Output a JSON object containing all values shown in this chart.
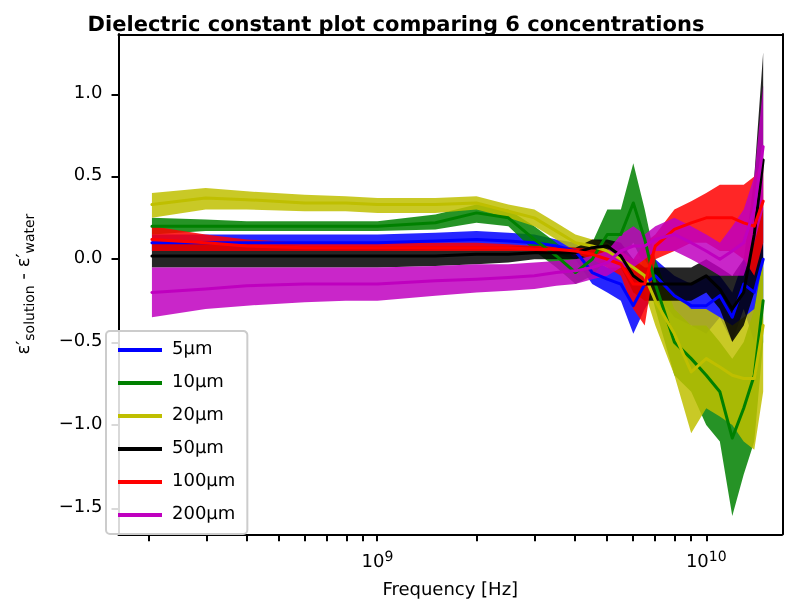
{
  "chart_data": {
    "type": "line",
    "title": "Dielectric constant plot comparing 6 concentrations",
    "xlabel": "Frequency [Hz]",
    "ylabel": "ε′$_{solution}$ - ε′$_{water}$",
    "log": "x",
    "grid": false,
    "legend": "bottom left",
    "marker": "none",
    "line_style": "solid",
    "xlim": [
      163000000.0,
      17000000000.0
    ],
    "xticks": [
      {
        "value": 200000000.0,
        "label": null
      },
      {
        "value": 300000000.0,
        "label": null
      },
      {
        "value": 400000000.0,
        "label": null
      },
      {
        "value": 500000000.0,
        "label": null
      },
      {
        "value": 600000000.0,
        "label": null
      },
      {
        "value": 700000000.0,
        "label": null
      },
      {
        "value": 800000000.0,
        "label": null
      },
      {
        "value": 900000000.0,
        "label": null
      },
      {
        "value": 1000000000.0,
        "label": "10$^{9}$"
      },
      {
        "value": 2000000000.0,
        "label": null
      },
      {
        "value": 3000000000.0,
        "label": null
      },
      {
        "value": 4000000000.0,
        "label": null
      },
      {
        "value": 5000000000.0,
        "label": null
      },
      {
        "value": 6000000000.0,
        "label": null
      },
      {
        "value": 7000000000.0,
        "label": null
      },
      {
        "value": 8000000000.0,
        "label": null
      },
      {
        "value": 9000000000.0,
        "label": null
      },
      {
        "value": 10000000000.0,
        "label": "10$^{10}$"
      }
    ],
    "ylim": [
      -1.66,
      1.36
    ],
    "yticks": [
      {
        "value": -1.5,
        "label": "−1.5"
      },
      {
        "value": -1.0,
        "label": "−1.0"
      },
      {
        "value": -0.5,
        "label": "−0.5"
      },
      {
        "value": 0.0,
        "label": "0.0"
      },
      {
        "value": 0.5,
        "label": "0.5"
      },
      {
        "value": 1.0,
        "label": "1.0"
      }
    ],
    "x": [
      206000000.0,
      300000000.0,
      400000000.0,
      600000000.0,
      800000000.0,
      1000000000.0,
      1500000000.0,
      2000000000.0,
      2500000000.0,
      3000000000.0,
      3500000000.0,
      4000000000.0,
      4500000000.0,
      5000000000.0,
      5500000000.0,
      6000000000.0,
      6500000000.0,
      7000000000.0,
      8000000000.0,
      9000000000.0,
      10000000000.0,
      11000000000.0,
      12000000000.0,
      13000000000.0,
      14000000000.0,
      14900000000.0
    ],
    "series": [
      {
        "name": "5μm",
        "color": "#0000ff",
        "values": [
          0.1,
          0.1,
          0.1,
          0.1,
          0.1,
          0.1,
          0.11,
          0.12,
          0.11,
          0.1,
          0.08,
          0.05,
          -0.08,
          -0.12,
          -0.15,
          -0.28,
          -0.15,
          -0.1,
          -0.22,
          -0.28,
          -0.28,
          -0.22,
          -0.35,
          -0.15,
          -0.2,
          0.0
        ],
        "lower": [
          0.05,
          0.05,
          0.05,
          0.05,
          0.05,
          0.05,
          0.06,
          0.07,
          0.06,
          0.05,
          0.03,
          0.0,
          -0.15,
          -0.2,
          -0.25,
          -0.45,
          -0.3,
          -0.2,
          -0.35,
          -0.4,
          -0.45,
          -0.35,
          -0.5,
          -0.3,
          -0.5,
          -0.3
        ],
        "upper": [
          0.15,
          0.15,
          0.15,
          0.15,
          0.15,
          0.15,
          0.16,
          0.17,
          0.16,
          0.15,
          0.12,
          0.1,
          0.0,
          -0.05,
          -0.05,
          -0.1,
          0.0,
          0.0,
          -0.1,
          -0.15,
          -0.1,
          -0.1,
          -0.2,
          0.0,
          0.1,
          0.3
        ]
      },
      {
        "name": "10μm",
        "color": "#008000",
        "values": [
          0.2,
          0.2,
          0.2,
          0.2,
          0.2,
          0.2,
          0.22,
          0.28,
          0.25,
          0.12,
          0.02,
          -0.08,
          0.0,
          0.15,
          0.15,
          0.34,
          0.12,
          -0.15,
          -0.5,
          -0.6,
          -0.7,
          -0.8,
          -1.08,
          -0.9,
          -0.7,
          -0.25
        ],
        "lower": [
          0.15,
          0.17,
          0.17,
          0.17,
          0.17,
          0.17,
          0.18,
          0.22,
          0.2,
          0.05,
          -0.05,
          -0.15,
          -0.1,
          0.0,
          0.0,
          0.1,
          -0.05,
          -0.3,
          -0.7,
          -0.8,
          -1.0,
          -1.1,
          -1.55,
          -1.3,
          -1.1,
          -0.5
        ],
        "upper": [
          0.25,
          0.24,
          0.23,
          0.23,
          0.23,
          0.23,
          0.27,
          0.33,
          0.3,
          0.2,
          0.1,
          0.0,
          0.1,
          0.3,
          0.3,
          0.58,
          0.3,
          0.0,
          -0.3,
          -0.4,
          -0.4,
          -0.5,
          -0.6,
          -0.5,
          -0.3,
          0.0
        ]
      },
      {
        "name": "20μm",
        "color": "#bfbf00",
        "values": [
          0.33,
          0.37,
          0.36,
          0.34,
          0.34,
          0.33,
          0.33,
          0.34,
          0.29,
          0.25,
          0.17,
          0.1,
          0.08,
          0.05,
          0.0,
          -0.05,
          -0.1,
          -0.25,
          -0.45,
          -0.68,
          -0.6,
          -0.65,
          -0.7,
          -0.72,
          -0.72,
          -0.4
        ],
        "lower": [
          0.25,
          0.3,
          0.3,
          0.29,
          0.29,
          0.28,
          0.28,
          0.3,
          0.25,
          0.2,
          0.12,
          0.05,
          0.03,
          0.0,
          -0.05,
          -0.1,
          -0.2,
          -0.4,
          -0.7,
          -1.05,
          -0.9,
          -0.95,
          -1.0,
          -1.1,
          -1.15,
          -0.8
        ],
        "upper": [
          0.4,
          0.43,
          0.41,
          0.39,
          0.38,
          0.37,
          0.37,
          0.38,
          0.33,
          0.3,
          0.22,
          0.15,
          0.12,
          0.1,
          0.05,
          0.0,
          0.0,
          -0.1,
          -0.2,
          -0.3,
          -0.3,
          -0.35,
          -0.4,
          -0.35,
          -0.3,
          0.0
        ]
      },
      {
        "name": "50μm",
        "color": "#000000",
        "values": [
          0.02,
          0.02,
          0.02,
          0.02,
          0.02,
          0.02,
          0.02,
          0.03,
          0.03,
          0.04,
          0.04,
          0.04,
          0.07,
          0.08,
          0.02,
          -0.1,
          -0.15,
          -0.15,
          -0.15,
          -0.15,
          -0.1,
          -0.18,
          -0.3,
          -0.2,
          0.15,
          0.6
        ],
        "lower": [
          -0.05,
          -0.05,
          -0.05,
          -0.05,
          -0.05,
          -0.05,
          -0.04,
          -0.03,
          -0.02,
          0.0,
          0.0,
          0.0,
          0.02,
          0.05,
          -0.05,
          -0.2,
          -0.25,
          -0.25,
          -0.25,
          -0.25,
          -0.2,
          -0.3,
          -0.5,
          -0.4,
          -0.2,
          0.0
        ],
        "upper": [
          0.1,
          0.1,
          0.09,
          0.08,
          0.08,
          0.08,
          0.08,
          0.08,
          0.08,
          0.08,
          0.07,
          0.07,
          0.12,
          0.12,
          0.1,
          0.0,
          -0.05,
          -0.05,
          -0.05,
          -0.05,
          0.0,
          -0.05,
          -0.1,
          0.0,
          0.5,
          1.25
        ]
      },
      {
        "name": "100μm",
        "color": "#ff0000",
        "values": [
          0.12,
          0.1,
          0.08,
          0.07,
          0.07,
          0.07,
          0.07,
          0.07,
          0.07,
          0.06,
          0.06,
          0.05,
          0.03,
          0.0,
          -0.03,
          -0.15,
          -0.15,
          0.08,
          0.18,
          0.22,
          0.25,
          0.25,
          0.25,
          0.22,
          0.2,
          0.35
        ],
        "lower": [
          0.05,
          0.05,
          0.05,
          0.05,
          0.05,
          0.05,
          0.05,
          0.05,
          0.05,
          0.05,
          0.04,
          0.03,
          0.0,
          -0.05,
          -0.1,
          -0.3,
          -0.4,
          0.0,
          0.05,
          0.1,
          0.1,
          0.05,
          0.05,
          0.0,
          -0.1,
          0.1
        ],
        "upper": [
          0.2,
          0.15,
          0.12,
          0.1,
          0.1,
          0.1,
          0.1,
          0.1,
          0.09,
          0.08,
          0.08,
          0.07,
          0.06,
          0.05,
          0.05,
          0.0,
          0.1,
          0.15,
          0.3,
          0.35,
          0.4,
          0.45,
          0.45,
          0.45,
          0.5,
          0.6
        ]
      },
      {
        "name": "200μm",
        "color": "#bf00bf",
        "values": [
          -0.2,
          -0.18,
          -0.16,
          -0.15,
          -0.15,
          -0.15,
          -0.13,
          -0.12,
          -0.11,
          -0.1,
          -0.08,
          -0.07,
          -0.05,
          -0.02,
          0.05,
          0.08,
          0.08,
          0.12,
          0.15,
          0.1,
          0.05,
          0.0,
          0.05,
          0.1,
          0.3,
          0.68
        ],
        "lower": [
          -0.35,
          -0.3,
          -0.28,
          -0.26,
          -0.25,
          -0.25,
          -0.22,
          -0.2,
          -0.19,
          -0.18,
          -0.16,
          -0.15,
          -0.12,
          -0.1,
          -0.05,
          -0.05,
          0.0,
          0.05,
          0.05,
          0.0,
          -0.05,
          -0.1,
          -0.1,
          -0.1,
          0.1,
          0.3
        ],
        "upper": [
          -0.05,
          -0.05,
          -0.05,
          -0.05,
          -0.05,
          -0.05,
          -0.04,
          -0.03,
          -0.03,
          -0.02,
          -0.01,
          0.0,
          0.02,
          0.05,
          0.15,
          0.2,
          0.15,
          0.2,
          0.25,
          0.2,
          0.15,
          0.1,
          0.2,
          0.3,
          0.5,
          1.05
        ]
      }
    ]
  }
}
